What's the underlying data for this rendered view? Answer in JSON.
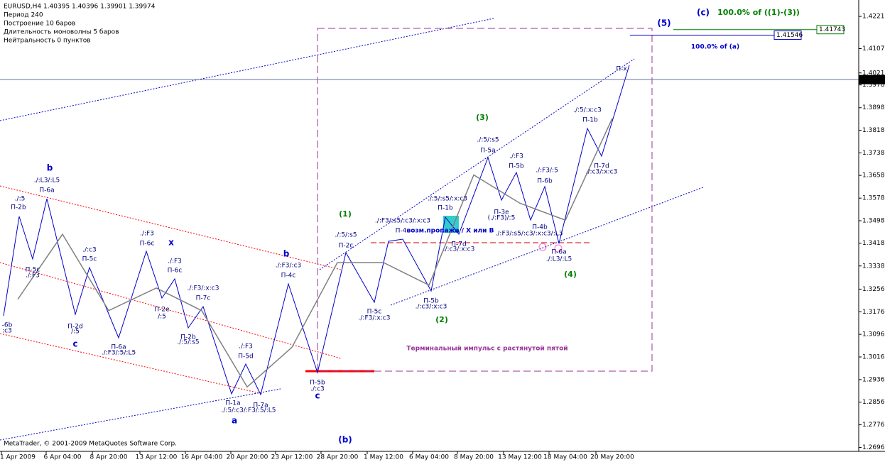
{
  "chart_data": {
    "type": "line",
    "title": "EURUSD,H4  1.40395 1.40396 1.39901 1.39974",
    "info": [
      "Период  240",
      "Построение     10 баров",
      "Длительность моноволны   5 баров",
      "Нейтральность  0  пунктов"
    ],
    "footer": "MetaTrader, © 2001-2009 MetaQuotes Software Corp.",
    "categories": [
      "1 Apr 2009",
      "6 Apr 04:00",
      "8 Apr 20:00",
      "13 Apr 12:00",
      "16 Apr 04:00",
      "20 Apr 20:00",
      "23 Apr 12:00",
      "28 Apr 20:00",
      "1 May 12:00",
      "6 May 04:00",
      "8 May 20:00",
      "13 May 12:00",
      "18 May 04:00",
      "20 May 20:00"
    ],
    "values": [
      1.322,
      1.345,
      1.318,
      1.326,
      1.318,
      1.291,
      1.305,
      1.335,
      1.335,
      1.327,
      1.366,
      1.356,
      1.35,
      1.386
    ],
    "color": "#808080",
    "ylim": [
      1.2672,
      1.4279
    ],
    "yticks": [
      {
        "value": 1.4221,
        "label": "1.42210"
      },
      {
        "value": 1.4107,
        "label": "1.41070"
      },
      {
        "value": 1.4021,
        "label": "1.40210"
      },
      1.39785,
      {
        "value": 1.3898,
        "label": "1.38980"
      },
      {
        "value": 1.3818,
        "label": "1.38180"
      },
      {
        "value": 1.3738,
        "label": "1.37380"
      },
      1.36585,
      {
        "value": 1.3578,
        "label": "1.35780"
      },
      {
        "value": 1.3498,
        "label": "1.34980"
      },
      1.34185,
      {
        "value": 1.3338,
        "label": "1.33380"
      },
      {
        "value": 1.3256,
        "label": "1.32560"
      },
      {
        "value": 1.3176,
        "label": "1.31760"
      },
      {
        "value": 1.3096,
        "label": "1.30960"
      },
      {
        "value": 1.3016,
        "label": "1.30160"
      },
      {
        "value": 1.2936,
        "label": "1.29360"
      },
      {
        "value": 1.2856,
        "label": "1.28560"
      },
      {
        "value": 1.2776,
        "label": "1.27760"
      },
      {
        "value": 1.2696,
        "label": "1.26960"
      }
    ],
    "levels": [
      {
        "value": 1.39974,
        "label": "1.39974",
        "color": "#000000"
      },
      {
        "value": 1.41546,
        "label": "1.41546",
        "color": "#0000cc"
      },
      {
        "value": 1.41743,
        "label": "1.41743",
        "color": "#008000"
      }
    ],
    "annotations": [
      "b",
      "./:L3/:L5",
      "П-6a",
      "./:5",
      "П-2b",
      "П-5c",
      "./:F3",
      "-6b",
      ":c3",
      "П-2d",
      "/:5",
      "c",
      "./:c3",
      "П-5c",
      "./:F3",
      "П-6c",
      "x",
      "./:F3",
      "П-6c",
      "П-2e",
      "/:5",
      "П-6a",
      "./:F3/:5/:L5",
      "./:F3/:x:c3",
      "П-7c",
      "П-2b",
      "./:5/:s5",
      "./:F3",
      "П-5d",
      "П-1a",
      "./:5/:c3/:F3/:5/:L5",
      "П-7a",
      "a",
      "b",
      "./:F3/:c3",
      "П-4c",
      "П-5b",
      "./:c3",
      "c",
      "(b)",
      "(1)",
      "./:5/:s5",
      "П-2c",
      "П-5c",
      "./:F3/:x:c3",
      "./:F3/:s5/:c3/:x:c3",
      "П-4c",
      "возм.пропажа / X или B",
      "П-1b",
      "./:5/:s5/:x:c3",
      "П-7d",
      "./:c3/:x:c3",
      "П-5b",
      "./:c3/:x:c3",
      "(2)",
      "(3)",
      "./:5/:s5",
      "П-5a",
      "./:F3",
      "П-5b",
      "П-3e",
      "(./:F3)/:5",
      "П-4b",
      "./:F3/:5",
      "П-6b",
      "./:F3/:s5/:c3/:x:c3/:L3",
      "П-6a",
      "./:L3/:L5",
      "(4)",
      "./:5/:x:c3",
      "П-1b",
      "П-7d",
      "./:c3/:x:c3",
      "П-x",
      "(5)",
      "(c)",
      "100.0% of ((1)-(3))",
      "100.0% of (a)",
      "Терминальный импульс с растянутой пятой"
    ]
  }
}
